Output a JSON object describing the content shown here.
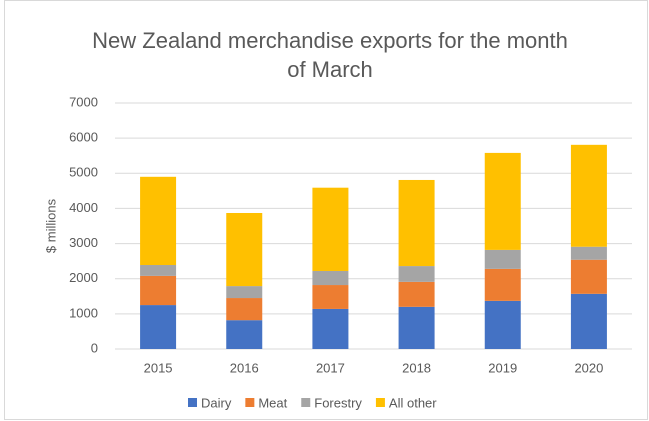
{
  "chart_data": {
    "type": "stacked_bar",
    "title": "New Zealand merchandise exports for the month of March",
    "y_label": "$ millions",
    "categories": [
      "2015",
      "2016",
      "2017",
      "2018",
      "2019",
      "2020"
    ],
    "series": [
      {
        "name": "Dairy",
        "color": "#4472c4",
        "values": [
          1250,
          820,
          1140,
          1200,
          1370,
          1570
        ]
      },
      {
        "name": "Meat",
        "color": "#ed7d31",
        "values": [
          830,
          630,
          680,
          710,
          910,
          970
        ]
      },
      {
        "name": "Forestry",
        "color": "#a5a5a5",
        "values": [
          310,
          340,
          400,
          450,
          540,
          370
        ]
      },
      {
        "name": "All other",
        "color": "#ffc000",
        "values": [
          2510,
          2080,
          2370,
          2450,
          2760,
          2900
        ]
      }
    ],
    "ylim": [
      0,
      7000
    ],
    "yticks": [
      0,
      1000,
      2000,
      3000,
      4000,
      5000,
      6000,
      7000
    ],
    "grid": true,
    "legend": "bottom"
  }
}
